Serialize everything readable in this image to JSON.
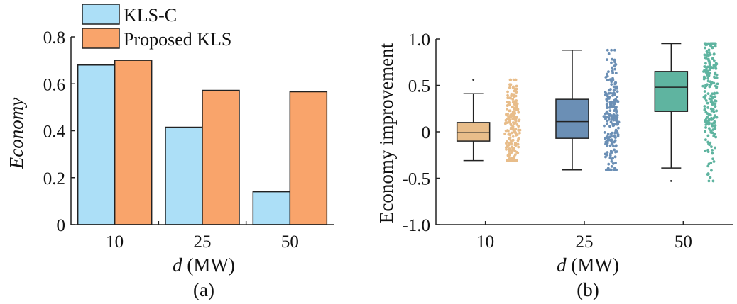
{
  "chart_data": [
    {
      "panel": "(a)",
      "type": "bar",
      "categories": [
        "10",
        "25",
        "50"
      ],
      "series": [
        {
          "name": "KLS-C",
          "values": [
            0.68,
            0.415,
            0.14
          ]
        },
        {
          "name": "Proposed KLS",
          "values": [
            0.7,
            0.572,
            0.566
          ]
        }
      ],
      "ylabel": "Economy",
      "xlabel_var": "d",
      "xlabel_unit": " (MW)",
      "ylim": [
        0,
        0.8
      ],
      "yticks": [
        "0",
        "0.2",
        "0.4",
        "0.6",
        "0.8"
      ],
      "grid": false,
      "legend_position": "top-left",
      "colors": {
        "KLS-C": "#acdff7",
        "Proposed KLS": "#f9a46b"
      }
    },
    {
      "panel": "(b)",
      "type": "box",
      "categories": [
        "10",
        "25",
        "50"
      ],
      "ylabel": "Economy improvement",
      "xlabel_var": "d",
      "xlabel_unit": " (MW)",
      "ylim": [
        -1.0,
        1.0
      ],
      "yticks": [
        "-1.0",
        "-0.5",
        "0",
        "0.5",
        "1.0"
      ],
      "grid": false,
      "boxes": [
        {
          "category": "10",
          "q1": -0.1,
          "median": -0.01,
          "q3": 0.1,
          "whisker_low": -0.31,
          "whisker_high": 0.41,
          "outliers": [
            0.56
          ],
          "color": "#e8bd8a"
        },
        {
          "category": "25",
          "q1": -0.07,
          "median": 0.11,
          "q3": 0.35,
          "whisker_low": -0.41,
          "whisker_high": 0.88,
          "outliers": [],
          "color": "#6b8fb5"
        },
        {
          "category": "50",
          "q1": 0.22,
          "median": 0.48,
          "q3": 0.65,
          "whisker_low": -0.39,
          "whisker_high": 0.95,
          "outliers": [
            -0.53
          ],
          "color": "#5fb4a0"
        }
      ],
      "scatter_ranges": [
        {
          "category": "10",
          "min": -0.31,
          "max": 0.56,
          "center": 0.02,
          "color": "#e8bd8a"
        },
        {
          "category": "25",
          "min": -0.41,
          "max": 0.88,
          "center": 0.12,
          "color": "#6b8fb5"
        },
        {
          "category": "50",
          "min": -0.53,
          "max": 0.95,
          "center": 0.45,
          "color": "#5fb4a0"
        }
      ]
    }
  ]
}
